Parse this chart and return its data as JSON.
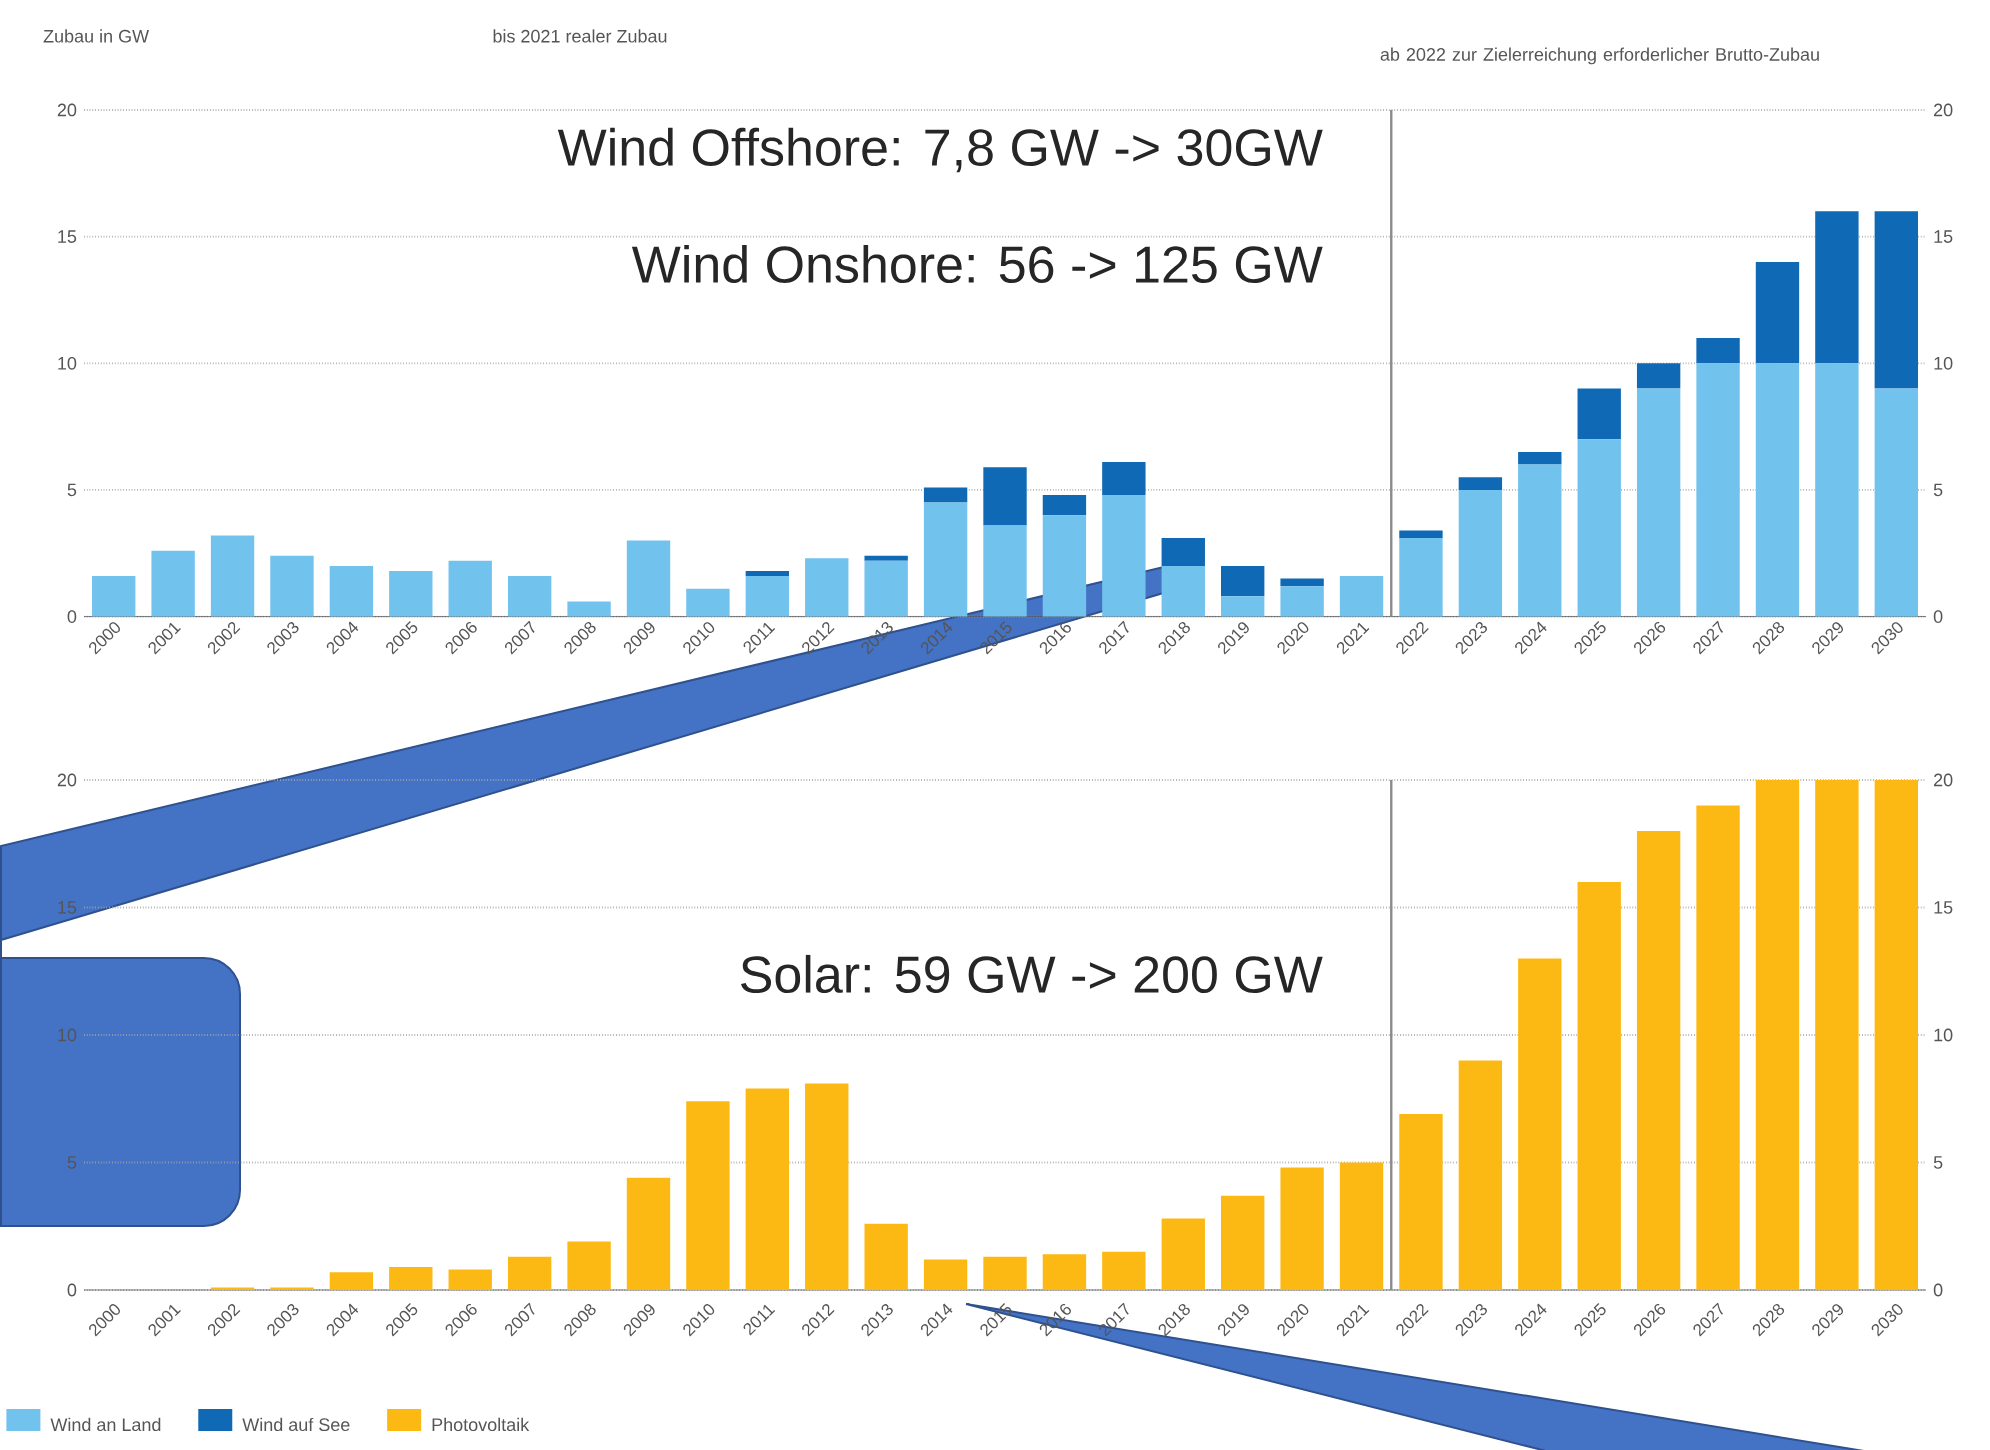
{
  "chart_data": [
    {
      "type": "bar",
      "stacked": true,
      "ylabel": "Zubau in GW",
      "annotations": [
        "bis 2021 realer Zubau",
        "ab 2022 zur Zielerreichung erforderlicher Brutto-Zubau",
        "Wind Offshore: 7,8 GW -> 30GW",
        "Wind Onshore: 56 -> 125 GW"
      ],
      "x": [
        2000,
        2001,
        2002,
        2003,
        2004,
        2005,
        2006,
        2007,
        2008,
        2009,
        2010,
        2011,
        2012,
        2013,
        2014,
        2015,
        2016,
        2017,
        2018,
        2019,
        2020,
        2021,
        2022,
        2023,
        2024,
        2025,
        2026,
        2027,
        2028,
        2029,
        2030
      ],
      "series": [
        {
          "name": "Wind an Land",
          "color": "#72c2ee",
          "values": [
            1.6,
            2.6,
            3.2,
            2.4,
            2.0,
            1.8,
            2.2,
            1.6,
            0.6,
            3.0,
            1.1,
            1.6,
            2.3,
            2.2,
            4.5,
            3.6,
            4.0,
            4.8,
            2.0,
            0.8,
            1.2,
            1.6,
            3.1,
            5.0,
            6.0,
            7.0,
            9.0,
            10.0,
            10.0,
            10.0,
            9.0
          ]
        },
        {
          "name": "Wind auf See",
          "color": "#0f69b4",
          "values": [
            0,
            0,
            0,
            0,
            0,
            0,
            0,
            0,
            0,
            0,
            0,
            0.2,
            0,
            0.2,
            0.6,
            2.3,
            0.8,
            1.3,
            1.1,
            1.2,
            0.3,
            0,
            0.3,
            0.5,
            0.5,
            2.0,
            1.0,
            1.0,
            4.0,
            6.0,
            7.0
          ]
        }
      ],
      "xlim": [
        1999.5,
        2030.5
      ],
      "xticks": [
        2000,
        2001,
        2002,
        2003,
        2004,
        2005,
        2006,
        2007,
        2008,
        2009,
        2010,
        2011,
        2012,
        2013,
        2014,
        2015,
        2016,
        2017,
        2018,
        2019,
        2020,
        2021,
        2022,
        2023,
        2024,
        2025,
        2026,
        2027,
        2028,
        2029,
        2030
      ],
      "ylim": [
        0,
        20
      ],
      "yticks": [
        0,
        5,
        10,
        15,
        20
      ],
      "y2lim": [
        0,
        20
      ],
      "y2ticks": [
        0,
        5,
        10,
        15,
        20
      ],
      "grid": "y",
      "legend": "bottom",
      "ref_lines": [
        {
          "axis": "x",
          "value": 2021.5,
          "color": "#8c8c8c"
        }
      ]
    },
    {
      "type": "bar",
      "annotations": [
        "Solar: 59 GW -> 200 GW"
      ],
      "x": [
        2000,
        2001,
        2002,
        2003,
        2004,
        2005,
        2006,
        2007,
        2008,
        2009,
        2010,
        2011,
        2012,
        2013,
        2014,
        2015,
        2016,
        2017,
        2018,
        2019,
        2020,
        2021,
        2022,
        2023,
        2024,
        2025,
        2026,
        2027,
        2028,
        2029,
        2030
      ],
      "series": [
        {
          "name": "Photovoltaik",
          "color": "#fdb913",
          "values": [
            0,
            0,
            0.1,
            0.1,
            0.7,
            0.9,
            0.8,
            1.3,
            1.9,
            4.4,
            7.4,
            7.9,
            8.1,
            2.6,
            1.2,
            1.3,
            1.4,
            1.5,
            2.8,
            3.7,
            4.8,
            5.0,
            6.9,
            9.0,
            13.0,
            16.0,
            18.0,
            19.0,
            20.0,
            20.0,
            20.0
          ]
        }
      ],
      "xlim": [
        1999.5,
        2030.5
      ],
      "xticks": [
        2000,
        2001,
        2002,
        2003,
        2004,
        2005,
        2006,
        2007,
        2008,
        2009,
        2010,
        2011,
        2012,
        2013,
        2014,
        2015,
        2016,
        2017,
        2018,
        2019,
        2020,
        2021,
        2022,
        2023,
        2024,
        2025,
        2026,
        2027,
        2028,
        2029,
        2030
      ],
      "ylim": [
        0,
        20
      ],
      "yticks": [
        0,
        5,
        10,
        15,
        20
      ],
      "y2lim": [
        0,
        20
      ],
      "y2ticks": [
        0,
        5,
        10,
        15,
        20
      ],
      "grid": "y",
      "legend": "bottom",
      "ref_lines": [
        {
          "axis": "x",
          "value": 2021.5,
          "color": "#8c8c8c"
        }
      ]
    }
  ]
}
